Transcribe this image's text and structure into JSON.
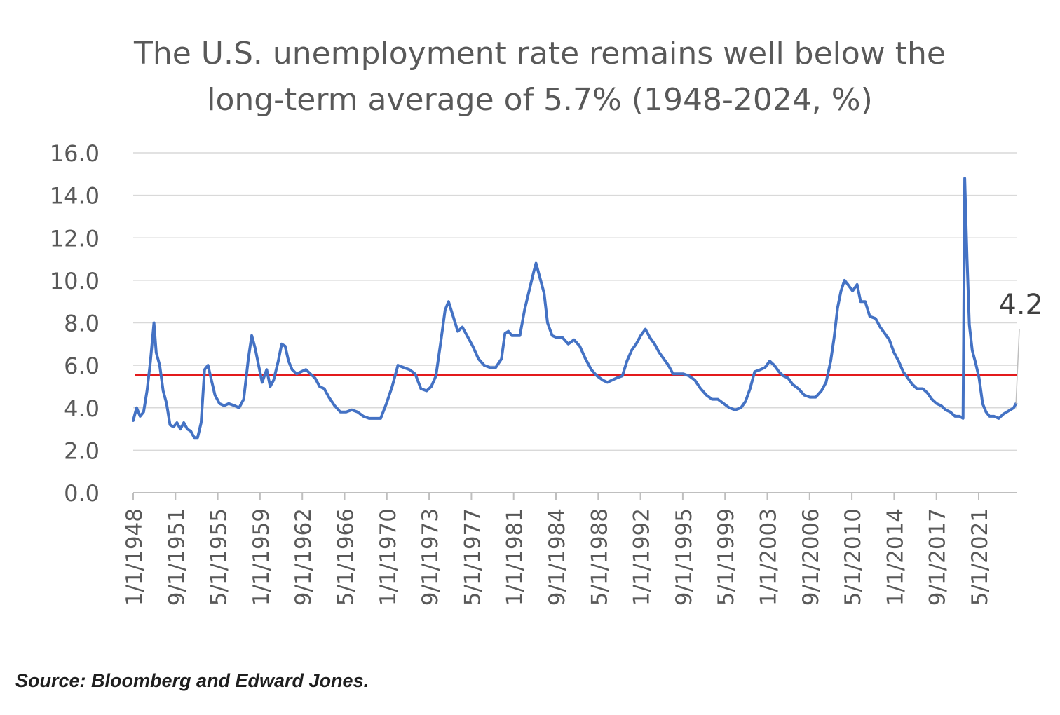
{
  "chart_data": {
    "type": "line",
    "title": "The U.S. unemployment rate remains well below the long-term average of 5.7% (1948-2024, %)",
    "title_lines": [
      "The U.S. unemployment rate remains well below the",
      "long-term average of 5.7% (1948-2024, %)"
    ],
    "xlabel": "",
    "ylabel": "",
    "ylim": [
      0,
      16
    ],
    "yticks": [
      "0.0",
      "2.0",
      "4.0",
      "6.0",
      "8.0",
      "10.0",
      "12.0",
      "14.0",
      "16.0"
    ],
    "xticks": [
      "1/1/1948",
      "9/1/1951",
      "5/1/1955",
      "1/1/1959",
      "9/1/1962",
      "5/1/1966",
      "1/1/1970",
      "9/1/1973",
      "5/1/1977",
      "1/1/1981",
      "9/1/1984",
      "5/1/1988",
      "1/1/1992",
      "9/1/1995",
      "5/1/1999",
      "1/1/2003",
      "9/1/2006",
      "5/1/2010",
      "1/1/2014",
      "9/1/2017",
      "5/1/2021"
    ],
    "grid": true,
    "legend": "none",
    "average_line": {
      "value": 5.7,
      "color": "#e31a1c"
    },
    "last_value_label": "4.2",
    "series": [
      {
        "color": "#4472c4",
        "points": [
          [
            1948.0,
            3.4
          ],
          [
            1948.3,
            4.0
          ],
          [
            1948.6,
            3.6
          ],
          [
            1948.9,
            3.8
          ],
          [
            1949.2,
            4.8
          ],
          [
            1949.5,
            6.2
          ],
          [
            1949.8,
            8.0
          ],
          [
            1950.0,
            6.6
          ],
          [
            1950.3,
            6.0
          ],
          [
            1950.6,
            4.8
          ],
          [
            1950.9,
            4.2
          ],
          [
            1951.2,
            3.2
          ],
          [
            1951.5,
            3.1
          ],
          [
            1951.8,
            3.3
          ],
          [
            1952.1,
            3.0
          ],
          [
            1952.4,
            3.3
          ],
          [
            1952.7,
            3.0
          ],
          [
            1953.0,
            2.9
          ],
          [
            1953.3,
            2.6
          ],
          [
            1953.6,
            2.6
          ],
          [
            1953.9,
            3.3
          ],
          [
            1954.2,
            5.8
          ],
          [
            1954.5,
            6.0
          ],
          [
            1954.8,
            5.3
          ],
          [
            1955.1,
            4.6
          ],
          [
            1955.5,
            4.2
          ],
          [
            1955.9,
            4.1
          ],
          [
            1956.3,
            4.2
          ],
          [
            1956.8,
            4.1
          ],
          [
            1957.2,
            4.0
          ],
          [
            1957.6,
            4.4
          ],
          [
            1958.0,
            6.3
          ],
          [
            1958.3,
            7.4
          ],
          [
            1958.6,
            6.8
          ],
          [
            1958.9,
            6.0
          ],
          [
            1959.2,
            5.2
          ],
          [
            1959.6,
            5.8
          ],
          [
            1959.9,
            5.0
          ],
          [
            1960.2,
            5.3
          ],
          [
            1960.6,
            6.2
          ],
          [
            1960.9,
            7.0
          ],
          [
            1961.2,
            6.9
          ],
          [
            1961.5,
            6.2
          ],
          [
            1961.8,
            5.8
          ],
          [
            1962.2,
            5.6
          ],
          [
            1962.6,
            5.7
          ],
          [
            1963.0,
            5.8
          ],
          [
            1963.4,
            5.6
          ],
          [
            1963.8,
            5.4
          ],
          [
            1964.2,
            5.0
          ],
          [
            1964.6,
            4.9
          ],
          [
            1965.0,
            4.5
          ],
          [
            1965.5,
            4.1
          ],
          [
            1966.0,
            3.8
          ],
          [
            1966.5,
            3.8
          ],
          [
            1967.0,
            3.9
          ],
          [
            1967.5,
            3.8
          ],
          [
            1968.0,
            3.6
          ],
          [
            1968.5,
            3.5
          ],
          [
            1969.0,
            3.5
          ],
          [
            1969.5,
            3.5
          ],
          [
            1970.0,
            4.2
          ],
          [
            1970.5,
            5.0
          ],
          [
            1971.0,
            6.0
          ],
          [
            1971.5,
            5.9
          ],
          [
            1972.0,
            5.8
          ],
          [
            1972.5,
            5.6
          ],
          [
            1973.0,
            4.9
          ],
          [
            1973.5,
            4.8
          ],
          [
            1973.9,
            5.0
          ],
          [
            1974.3,
            5.5
          ],
          [
            1974.7,
            7.0
          ],
          [
            1975.1,
            8.6
          ],
          [
            1975.4,
            9.0
          ],
          [
            1975.8,
            8.3
          ],
          [
            1976.2,
            7.6
          ],
          [
            1976.6,
            7.8
          ],
          [
            1977.0,
            7.4
          ],
          [
            1977.5,
            6.9
          ],
          [
            1978.0,
            6.3
          ],
          [
            1978.5,
            6.0
          ],
          [
            1979.0,
            5.9
          ],
          [
            1979.5,
            5.9
          ],
          [
            1980.0,
            6.3
          ],
          [
            1980.3,
            7.5
          ],
          [
            1980.6,
            7.6
          ],
          [
            1980.9,
            7.4
          ],
          [
            1981.2,
            7.4
          ],
          [
            1981.6,
            7.4
          ],
          [
            1982.0,
            8.6
          ],
          [
            1982.4,
            9.5
          ],
          [
            1982.8,
            10.4
          ],
          [
            1983.0,
            10.8
          ],
          [
            1983.3,
            10.2
          ],
          [
            1983.7,
            9.4
          ],
          [
            1984.0,
            8.0
          ],
          [
            1984.4,
            7.4
          ],
          [
            1984.8,
            7.3
          ],
          [
            1985.3,
            7.3
          ],
          [
            1985.8,
            7.0
          ],
          [
            1986.3,
            7.2
          ],
          [
            1986.8,
            6.9
          ],
          [
            1987.3,
            6.3
          ],
          [
            1987.8,
            5.8
          ],
          [
            1988.3,
            5.5
          ],
          [
            1988.8,
            5.3
          ],
          [
            1989.2,
            5.2
          ],
          [
            1989.6,
            5.3
          ],
          [
            1990.0,
            5.4
          ],
          [
            1990.5,
            5.5
          ],
          [
            1990.9,
            6.2
          ],
          [
            1991.3,
            6.7
          ],
          [
            1991.7,
            7.0
          ],
          [
            1992.1,
            7.4
          ],
          [
            1992.5,
            7.7
          ],
          [
            1992.9,
            7.3
          ],
          [
            1993.3,
            7.0
          ],
          [
            1993.7,
            6.6
          ],
          [
            1994.1,
            6.3
          ],
          [
            1994.5,
            6.0
          ],
          [
            1994.9,
            5.6
          ],
          [
            1995.3,
            5.6
          ],
          [
            1995.8,
            5.6
          ],
          [
            1996.3,
            5.5
          ],
          [
            1996.8,
            5.3
          ],
          [
            1997.3,
            4.9
          ],
          [
            1997.8,
            4.6
          ],
          [
            1998.3,
            4.4
          ],
          [
            1998.8,
            4.4
          ],
          [
            1999.3,
            4.2
          ],
          [
            1999.8,
            4.0
          ],
          [
            2000.3,
            3.9
          ],
          [
            2000.8,
            4.0
          ],
          [
            2001.2,
            4.3
          ],
          [
            2001.6,
            4.9
          ],
          [
            2002.0,
            5.7
          ],
          [
            2002.5,
            5.8
          ],
          [
            2002.9,
            5.9
          ],
          [
            2003.3,
            6.2
          ],
          [
            2003.7,
            6.0
          ],
          [
            2004.1,
            5.7
          ],
          [
            2004.5,
            5.5
          ],
          [
            2004.9,
            5.4
          ],
          [
            2005.3,
            5.1
          ],
          [
            2005.8,
            4.9
          ],
          [
            2006.3,
            4.6
          ],
          [
            2006.8,
            4.5
          ],
          [
            2007.3,
            4.5
          ],
          [
            2007.8,
            4.8
          ],
          [
            2008.2,
            5.2
          ],
          [
            2008.6,
            6.2
          ],
          [
            2008.9,
            7.3
          ],
          [
            2009.2,
            8.7
          ],
          [
            2009.5,
            9.5
          ],
          [
            2009.8,
            10.0
          ],
          [
            2010.1,
            9.8
          ],
          [
            2010.5,
            9.5
          ],
          [
            2010.9,
            9.8
          ],
          [
            2011.2,
            9.0
          ],
          [
            2011.6,
            9.0
          ],
          [
            2012.0,
            8.3
          ],
          [
            2012.5,
            8.2
          ],
          [
            2012.9,
            7.8
          ],
          [
            2013.3,
            7.5
          ],
          [
            2013.7,
            7.2
          ],
          [
            2014.1,
            6.6
          ],
          [
            2014.5,
            6.2
          ],
          [
            2014.9,
            5.7
          ],
          [
            2015.3,
            5.4
          ],
          [
            2015.7,
            5.1
          ],
          [
            2016.1,
            4.9
          ],
          [
            2016.6,
            4.9
          ],
          [
            2017.0,
            4.7
          ],
          [
            2017.4,
            4.4
          ],
          [
            2017.8,
            4.2
          ],
          [
            2018.2,
            4.1
          ],
          [
            2018.6,
            3.9
          ],
          [
            2019.0,
            3.8
          ],
          [
            2019.4,
            3.6
          ],
          [
            2019.8,
            3.6
          ],
          [
            2020.1,
            3.5
          ],
          [
            2020.25,
            14.8
          ],
          [
            2020.45,
            11.0
          ],
          [
            2020.65,
            7.9
          ],
          [
            2020.9,
            6.7
          ],
          [
            2021.2,
            6.1
          ],
          [
            2021.5,
            5.4
          ],
          [
            2021.8,
            4.2
          ],
          [
            2022.1,
            3.8
          ],
          [
            2022.4,
            3.6
          ],
          [
            2022.8,
            3.6
          ],
          [
            2023.2,
            3.5
          ],
          [
            2023.6,
            3.7
          ],
          [
            2023.9,
            3.8
          ],
          [
            2024.2,
            3.9
          ],
          [
            2024.5,
            4.0
          ],
          [
            2024.7,
            4.2
          ]
        ]
      }
    ]
  },
  "source_note": "Source: Bloomberg and Edward Jones."
}
